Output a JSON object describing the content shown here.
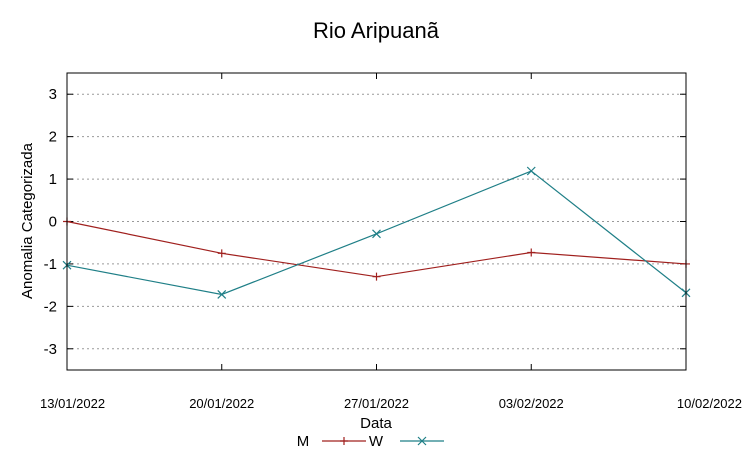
{
  "chart_data": {
    "type": "line",
    "title": "Rio Aripuanã",
    "xlabel": "Data",
    "ylabel": "Anomalia Categorizada",
    "x": [
      "13/01/2022",
      "20/01/2022",
      "27/01/2022",
      "03/02/2022",
      "10/02/2022"
    ],
    "ylim": [
      -3.5,
      3.5
    ],
    "yticks": [
      3,
      2,
      1,
      0,
      -1,
      -2,
      -3
    ],
    "grid": true,
    "legend_position": "bottom",
    "series": [
      {
        "name": "M",
        "color": "#a0201e",
        "marker": "plus",
        "values": [
          0.0,
          -0.75,
          -1.3,
          -0.73,
          -1.0
        ]
      },
      {
        "name": "W",
        "color": "#1f7f87",
        "marker": "cross",
        "values": [
          -1.03,
          -1.72,
          -0.29,
          1.19,
          -1.68
        ]
      }
    ]
  }
}
